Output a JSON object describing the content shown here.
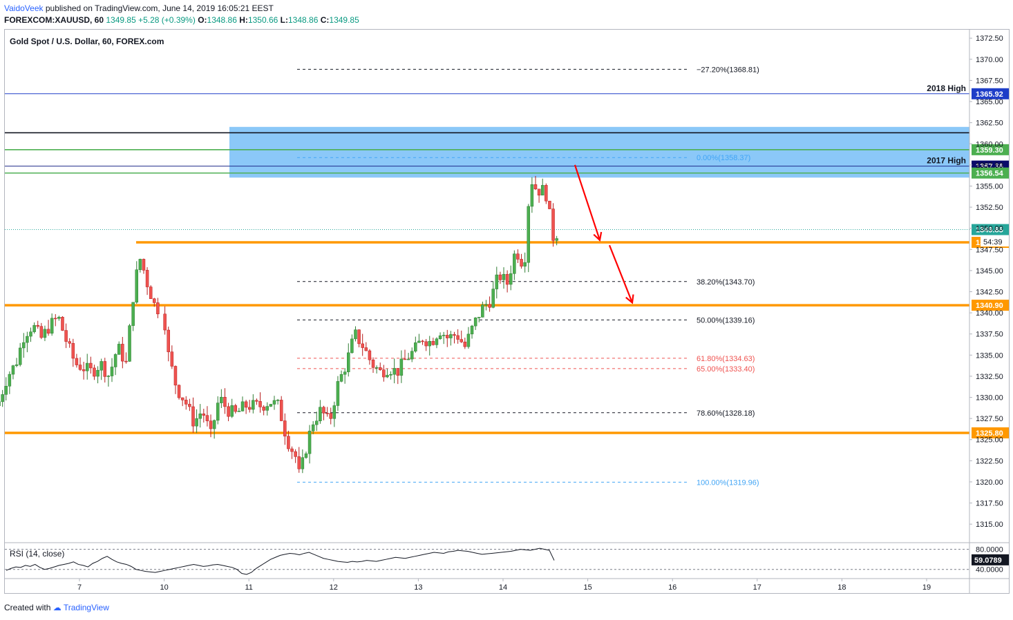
{
  "header": {
    "author": "VaidoVeek",
    "published": "published on TradingView.com, June 14, 2019 16:05:21 EEST",
    "symbol": "FOREXCOM:XAUUSD, 60",
    "price": "1349.85",
    "change": "+5.28 (+0.39%)",
    "o_label": "O:",
    "o": "1348.86",
    "h_label": "H:",
    "h": "1350.66",
    "l_label": "L:",
    "l": "1348.86",
    "c_label": "C:",
    "c": "1349.85"
  },
  "footer": {
    "created": "Created with",
    "brand": "TradingView"
  },
  "colors": {
    "bull": "#26a69a",
    "bull_fill": "#4caf50",
    "bear": "#ef5350",
    "zone": "#64b5f6",
    "orange": "#ff9800",
    "green_line": "#4caf50",
    "blue_line": "#1e3ec8",
    "black_line": "#131722",
    "arrow": "#ff0000",
    "fib_red": "#ef5350",
    "fib_blue": "#42a5f5",
    "rsi": "#131722"
  },
  "chart_data": {
    "type": "candlestick",
    "title": "Gold Spot / U.S. Dollar, 60, FOREX.com",
    "ylim": [
      1312.5,
      1373.5
    ],
    "yticks": [
      "1372.50",
      "1370.00",
      "1367.50",
      "1365.00",
      "1362.50",
      "1360.00",
      "1357.50",
      "1355.00",
      "1352.50",
      "1350.00",
      "1347.50",
      "1345.00",
      "1342.50",
      "1340.00",
      "1337.50",
      "1335.00",
      "1332.50",
      "1330.00",
      "1327.50",
      "1325.00",
      "1322.50",
      "1320.00",
      "1317.50",
      "1315.00"
    ],
    "xticks": [
      {
        "label": "7",
        "day": 7
      },
      {
        "label": "10",
        "day": 10
      },
      {
        "label": "11",
        "day": 11
      },
      {
        "label": "12",
        "day": 12
      },
      {
        "label": "13",
        "day": 13
      },
      {
        "label": "14",
        "day": 14
      },
      {
        "label": "15",
        "day": 15
      },
      {
        "label": "16",
        "day": 16
      },
      {
        "label": "17",
        "day": 17
      },
      {
        "label": "18",
        "day": 18
      },
      {
        "label": "19",
        "day": 19
      }
    ],
    "close_path": [
      [
        6.05,
        1329.5
      ],
      [
        6.15,
        1332.5
      ],
      [
        6.25,
        1334.0
      ],
      [
        6.35,
        1337.5
      ],
      [
        6.45,
        1338.5
      ],
      [
        6.55,
        1337.0
      ],
      [
        6.65,
        1338.5
      ],
      [
        6.75,
        1339.5
      ],
      [
        6.85,
        1336.5
      ],
      [
        6.95,
        1334.0
      ],
      [
        7.05,
        1333.5
      ],
      [
        7.15,
        1333.0
      ],
      [
        7.25,
        1334.0
      ],
      [
        7.35,
        1332.5
      ],
      [
        7.45,
        1336.0
      ],
      [
        7.55,
        1334.0
      ],
      [
        7.65,
        1343.5
      ],
      [
        7.72,
        1346.5
      ],
      [
        7.8,
        1343.5
      ],
      [
        7.9,
        1340.5
      ],
      [
        10.0,
        1339.5
      ],
      [
        10.05,
        1335.0
      ],
      [
        10.15,
        1331.0
      ],
      [
        10.25,
        1329.5
      ],
      [
        10.35,
        1327.0
      ],
      [
        10.45,
        1328.5
      ],
      [
        10.55,
        1325.5
      ],
      [
        10.65,
        1330.0
      ],
      [
        10.75,
        1328.5
      ],
      [
        10.85,
        1328.0
      ],
      [
        10.95,
        1329.0
      ],
      [
        11.05,
        1329.0
      ],
      [
        11.15,
        1329.0
      ],
      [
        11.25,
        1329.5
      ],
      [
        11.35,
        1329.0
      ],
      [
        11.45,
        1325.0
      ],
      [
        11.55,
        1323.0
      ],
      [
        11.6,
        1320.5
      ],
      [
        11.65,
        1323.0
      ],
      [
        11.75,
        1327.0
      ],
      [
        11.85,
        1328.5
      ],
      [
        11.95,
        1327.0
      ],
      [
        12.05,
        1331.5
      ],
      [
        12.15,
        1334.0
      ],
      [
        12.25,
        1337.5
      ],
      [
        12.35,
        1336.0
      ],
      [
        12.45,
        1334.0
      ],
      [
        12.55,
        1333.0
      ],
      [
        12.65,
        1333.5
      ],
      [
        12.75,
        1333.0
      ],
      [
        12.85,
        1334.5
      ],
      [
        12.95,
        1335.5
      ],
      [
        13.05,
        1337.0
      ],
      [
        13.15,
        1336.5
      ],
      [
        13.25,
        1338.0
      ],
      [
        13.35,
        1337.0
      ],
      [
        13.45,
        1337.5
      ],
      [
        13.55,
        1336.0
      ],
      [
        13.65,
        1338.5
      ],
      [
        13.75,
        1340.5
      ],
      [
        13.85,
        1341.5
      ],
      [
        13.95,
        1344.5
      ],
      [
        14.05,
        1343.5
      ],
      [
        14.15,
        1347.5
      ],
      [
        14.25,
        1345.5
      ],
      [
        14.32,
        1356.0
      ],
      [
        14.4,
        1354.5
      ],
      [
        14.5,
        1354.5
      ],
      [
        14.6,
        1348.5
      ],
      [
        14.65,
        1349.85
      ]
    ],
    "last_close": 1349.85,
    "levels": [
      {
        "name": "2018 High",
        "value": 1365.92,
        "label": "1365.92",
        "style": "blue"
      },
      {
        "name": "zone-top-line",
        "value": 1361.3,
        "label": "",
        "style": "black"
      },
      {
        "name": "green-level",
        "value": 1359.3,
        "label": "1359.30",
        "style": "green"
      },
      {
        "name": "2017 High",
        "value": 1357.36,
        "label": "1357.36",
        "style": "navy"
      },
      {
        "name": "green-level",
        "value": 1356.54,
        "label": "1356.54",
        "style": "green"
      },
      {
        "name": "orange-level",
        "value": 1348.34,
        "label": "1348.34",
        "style": "orange",
        "extra": "54:39"
      },
      {
        "name": "orange-level",
        "value": 1340.9,
        "label": "1340.90",
        "style": "orange"
      },
      {
        "name": "orange-level",
        "value": 1325.8,
        "label": "1325.80",
        "style": "orange"
      }
    ],
    "resistance_zone": {
      "from": 1356.0,
      "to": 1362.0
    },
    "fibonacci": [
      {
        "label": "−27.20%(1368.81)",
        "value": 1368.81,
        "color": "gray"
      },
      {
        "label": "0.00%(1358.37)",
        "value": 1358.37,
        "color": "blue"
      },
      {
        "label": "38.20%(1343.70)",
        "value": 1343.7,
        "color": "gray"
      },
      {
        "label": "50.00%(1339.16)",
        "value": 1339.16,
        "color": "gray"
      },
      {
        "label": "61.80%(1334.63)",
        "value": 1334.63,
        "color": "red"
      },
      {
        "label": "65.00%(1333.40)",
        "value": 1333.4,
        "color": "red"
      },
      {
        "label": "78.60%(1328.18)",
        "value": 1328.18,
        "color": "gray"
      },
      {
        "label": "100.00%(1319.96)",
        "value": 1319.96,
        "color": "blue"
      }
    ],
    "annotations": [
      "2018 High",
      "2017 High"
    ],
    "rsi": {
      "label": "RSI (14, close)",
      "value_label": "59.0789",
      "ticks": [
        "80.0000",
        "40.0000"
      ],
      "values": [
        38,
        42,
        45,
        44,
        48,
        46,
        50,
        44,
        40,
        42,
        45,
        48,
        50,
        52,
        55,
        50,
        48,
        45,
        52,
        56,
        62,
        66,
        60,
        55,
        52,
        50,
        46,
        40,
        38,
        36,
        35,
        34,
        36,
        38,
        40,
        42,
        44,
        46,
        48,
        50,
        48,
        46,
        47,
        49,
        50,
        48,
        46,
        44,
        40,
        32,
        30,
        34,
        42,
        48,
        54,
        60,
        64,
        68,
        70,
        72,
        71,
        69,
        72,
        74,
        70,
        66,
        62,
        60,
        58,
        56,
        55,
        54,
        56,
        55,
        56,
        58,
        57,
        56,
        58,
        60,
        62,
        64,
        63,
        62,
        64,
        66,
        68,
        70,
        72,
        74,
        73,
        72,
        75,
        76,
        78,
        77,
        76,
        74,
        72,
        70,
        71,
        72,
        73,
        74,
        75,
        76,
        78,
        80,
        79,
        78,
        80,
        82,
        80,
        78,
        58
      ]
    }
  }
}
